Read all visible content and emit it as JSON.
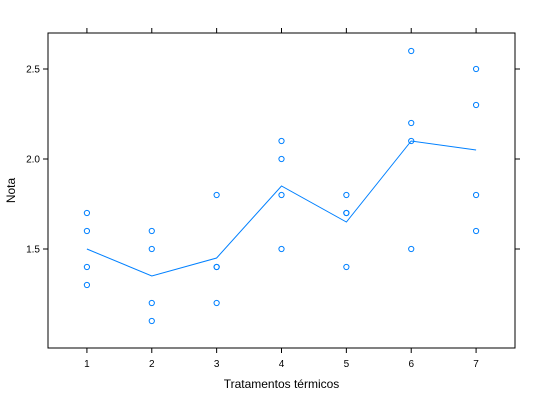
{
  "chart_data": {
    "type": "scatter",
    "title": "",
    "xlabel": "Tratamentos térmicos",
    "ylabel": "Nota",
    "xlim": [
      0.4,
      7.6
    ],
    "ylim": [
      0.95,
      2.7
    ],
    "x_ticks": [
      1,
      2,
      3,
      4,
      5,
      6,
      7
    ],
    "x_tick_labels": [
      "1",
      "2",
      "3",
      "4",
      "5",
      "6",
      "7"
    ],
    "y_ticks": [
      1.5,
      2.0,
      2.5
    ],
    "y_tick_labels": [
      "1.5",
      "2.0",
      "2.5"
    ],
    "grid": false,
    "points": [
      {
        "x": 1,
        "y": 1.7
      },
      {
        "x": 1,
        "y": 1.6
      },
      {
        "x": 1,
        "y": 1.4
      },
      {
        "x": 1,
        "y": 1.3
      },
      {
        "x": 2,
        "y": 1.6
      },
      {
        "x": 2,
        "y": 1.5
      },
      {
        "x": 2,
        "y": 1.2
      },
      {
        "x": 2,
        "y": 1.1
      },
      {
        "x": 3,
        "y": 1.8
      },
      {
        "x": 3,
        "y": 1.4
      },
      {
        "x": 3,
        "y": 1.4
      },
      {
        "x": 3,
        "y": 1.2
      },
      {
        "x": 4,
        "y": 2.1
      },
      {
        "x": 4,
        "y": 2.0
      },
      {
        "x": 4,
        "y": 1.8
      },
      {
        "x": 4,
        "y": 1.5
      },
      {
        "x": 5,
        "y": 1.8
      },
      {
        "x": 5,
        "y": 1.7
      },
      {
        "x": 5,
        "y": 1.7
      },
      {
        "x": 5,
        "y": 1.4
      },
      {
        "x": 6,
        "y": 2.6
      },
      {
        "x": 6,
        "y": 2.2
      },
      {
        "x": 6,
        "y": 2.1
      },
      {
        "x": 6,
        "y": 1.5
      },
      {
        "x": 7,
        "y": 2.5
      },
      {
        "x": 7,
        "y": 2.3
      },
      {
        "x": 7,
        "y": 1.8
      },
      {
        "x": 7,
        "y": 1.6
      }
    ],
    "line": {
      "x": [
        1,
        2,
        3,
        4,
        5,
        6,
        7
      ],
      "y": [
        1.5,
        1.35,
        1.45,
        1.85,
        1.65,
        2.1,
        2.05
      ]
    },
    "colors": {
      "series": "#0080ff",
      "axis": "#000000"
    }
  }
}
